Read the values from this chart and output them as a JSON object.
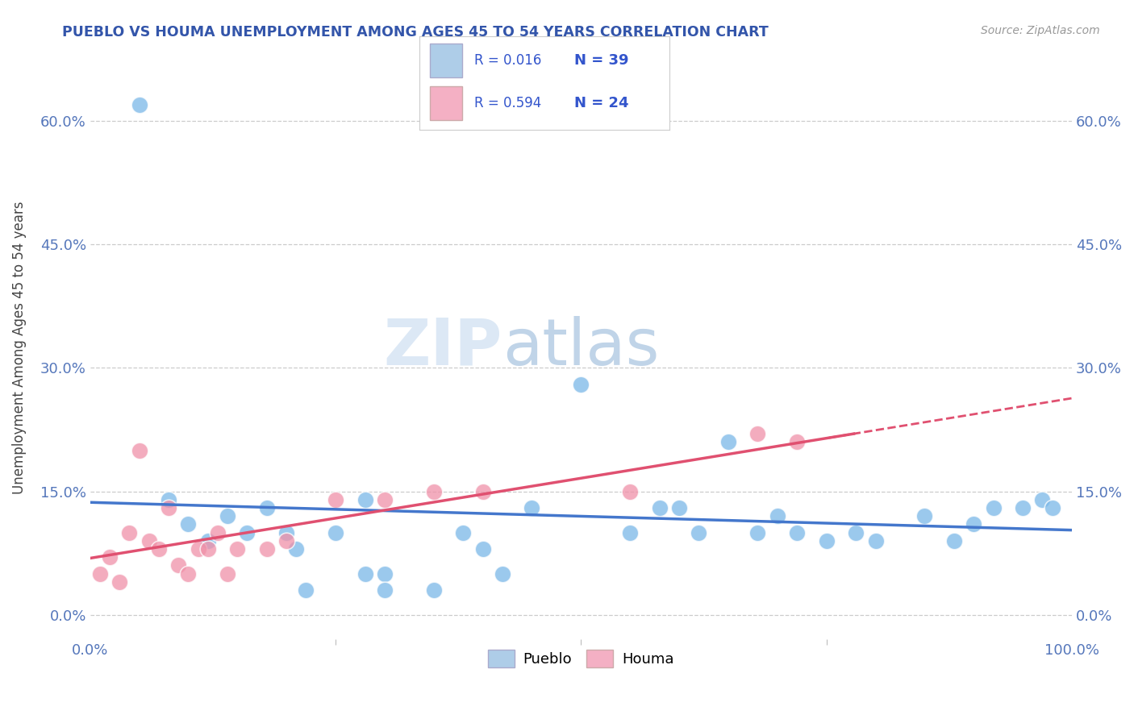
{
  "title": "PUEBLO VS HOUMA UNEMPLOYMENT AMONG AGES 45 TO 54 YEARS CORRELATION CHART",
  "source_text": "Source: ZipAtlas.com",
  "ylabel": "Unemployment Among Ages 45 to 54 years",
  "xlim": [
    0,
    100
  ],
  "ylim": [
    -3,
    68
  ],
  "ytick_values": [
    0,
    15,
    30,
    45,
    60
  ],
  "grid_color": "#cccccc",
  "background_color": "#ffffff",
  "pueblo_color": "#7ab8e8",
  "houma_color": "#f090a8",
  "pueblo_R": "0.016",
  "pueblo_N": "39",
  "houma_R": "0.594",
  "houma_N": "24",
  "legend_text_color": "#3355cc",
  "legend_box_color_pueblo": "#aecde8",
  "legend_box_color_houma": "#f4b0c4",
  "pueblo_x": [
    5,
    8,
    10,
    12,
    14,
    16,
    18,
    20,
    21,
    22,
    25,
    28,
    28,
    30,
    30,
    35,
    38,
    40,
    42,
    45,
    50,
    55,
    58,
    60,
    62,
    65,
    68,
    70,
    72,
    75,
    78,
    80,
    85,
    88,
    90,
    92,
    95,
    97,
    98
  ],
  "pueblo_y": [
    62,
    14,
    11,
    9,
    12,
    10,
    13,
    10,
    8,
    3,
    10,
    5,
    14,
    5,
    3,
    3,
    10,
    8,
    5,
    13,
    28,
    10,
    13,
    13,
    10,
    21,
    10,
    12,
    10,
    9,
    10,
    9,
    12,
    9,
    11,
    13,
    13,
    14,
    13
  ],
  "houma_x": [
    1,
    2,
    3,
    4,
    5,
    6,
    7,
    8,
    9,
    10,
    11,
    12,
    13,
    14,
    15,
    18,
    20,
    25,
    30,
    35,
    40,
    55,
    68,
    72
  ],
  "houma_y": [
    5,
    7,
    4,
    10,
    20,
    9,
    8,
    13,
    6,
    5,
    8,
    8,
    10,
    5,
    8,
    8,
    9,
    14,
    14,
    15,
    15,
    15,
    22,
    21
  ],
  "watermark_zip_color": "#dce8f5",
  "watermark_atlas_color": "#c8d8e8"
}
